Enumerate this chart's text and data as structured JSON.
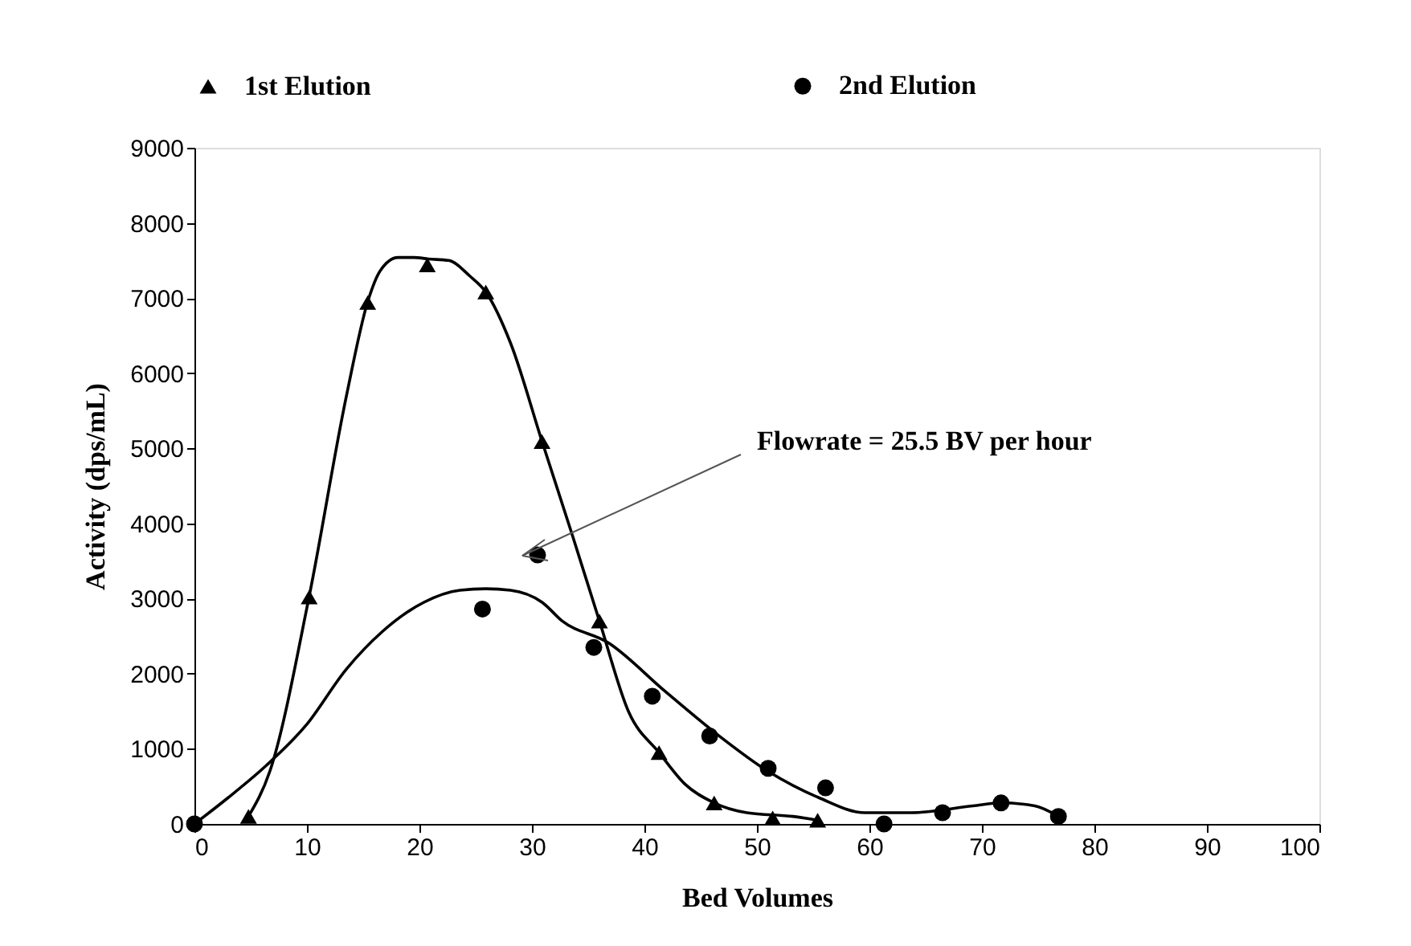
{
  "chart_data": {
    "type": "scatter",
    "xlabel": "Bed Volumes",
    "ylabel": "Activity (dps/mL)",
    "xlim": [
      0,
      100
    ],
    "xticks": [
      0,
      10,
      20,
      30,
      40,
      50,
      60,
      70,
      80,
      90,
      100
    ],
    "ylim": [
      0,
      9000
    ],
    "yticks": [
      0,
      1000,
      2000,
      3000,
      4000,
      5000,
      6000,
      7000,
      8000,
      9000
    ],
    "grid": false,
    "legend": "top",
    "annotations": [
      "Flowrate = 25.5 BV per hour"
    ],
    "series": [
      {
        "name": "1st Elution",
        "marker": "triangle",
        "color": "#000000",
        "x": [
          4.8,
          10.2,
          15.4,
          20.7,
          25.9,
          30.9,
          36.0,
          41.3,
          46.2,
          51.4,
          55.4
        ],
        "values": [
          100,
          3020,
          6940,
          7440,
          7080,
          5090,
          2700,
          950,
          280,
          80,
          50
        ]
      },
      {
        "name": "2nd Elution",
        "marker": "circle",
        "color": "#000000",
        "x": [
          0,
          25.6,
          30.5,
          35.5,
          40.7,
          45.8,
          51.0,
          56.1,
          61.3,
          66.5,
          71.7,
          76.8
        ],
        "values": [
          0,
          2860,
          3580,
          2350,
          1700,
          1170,
          740,
          480,
          0,
          150,
          280,
          100
        ]
      },
      {
        "type": "line",
        "marker": "none",
        "line_style": "solid",
        "color": "#000000",
        "x": [
          4.8,
          6.7,
          10.2,
          13.5,
          15.4,
          16.5,
          18.1,
          19.5,
          20.8,
          22.6,
          24.5,
          25.9,
          28.1,
          30.9,
          33.6,
          36.0,
          38.6,
          41.3,
          43.6,
          46.2,
          49.1,
          53.2,
          55.4
        ],
        "values": [
          100,
          700,
          3030,
          5690,
          6950,
          7360,
          7540,
          7540,
          7520,
          7500,
          7290,
          7080,
          6400,
          5090,
          3840,
          2700,
          1490,
          950,
          530,
          280,
          150,
          100,
          50
        ]
      },
      {
        "type": "line",
        "marker": "none",
        "line_style": "solid",
        "color": "#000000",
        "x": [
          0,
          3.0,
          6.4,
          9.9,
          13.5,
          16.7,
          20.4,
          23.6,
          25.9,
          28.1,
          30.9,
          32.7,
          36.8,
          41.8,
          46.4,
          51.0,
          55.5,
          59.6,
          63.7,
          69.2,
          71.7,
          74.7,
          76.8
        ],
        "values": [
          0,
          350,
          780,
          1310,
          2060,
          2560,
          2950,
          3110,
          3130,
          3110,
          2950,
          2700,
          2410,
          1770,
          1200,
          700,
          350,
          150,
          150,
          240,
          280,
          240,
          100
        ]
      }
    ]
  }
}
